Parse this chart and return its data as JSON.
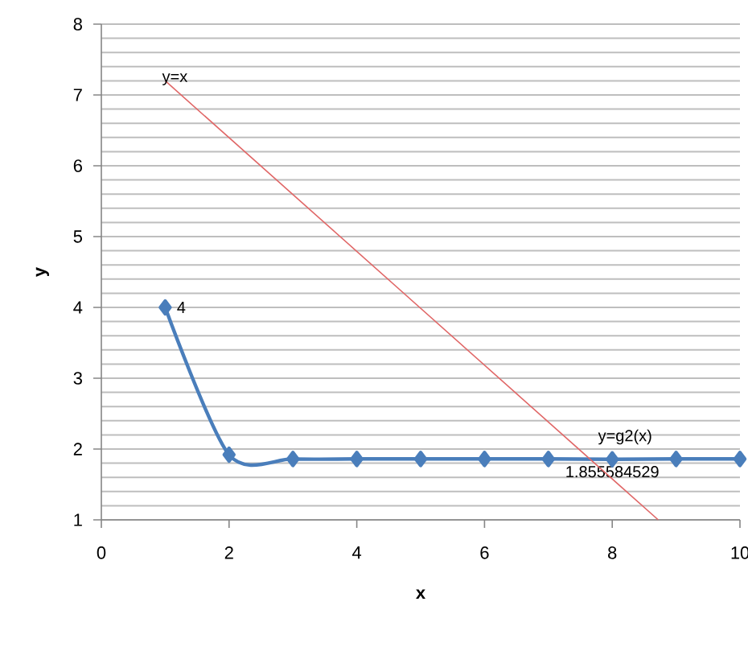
{
  "chart_data": {
    "type": "line",
    "xlabel": "x",
    "ylabel": "y",
    "xlim": [
      0,
      10
    ],
    "ylim": [
      1,
      8
    ],
    "xticks": [
      0,
      2,
      4,
      6,
      8,
      10
    ],
    "yticks": [
      1,
      {
        "value": 1.2,
        "label": null
      },
      {
        "value": 1.4,
        "label": null
      },
      {
        "value": 1.6,
        "label": null
      },
      {
        "value": 1.8,
        "label": null
      },
      2,
      {
        "value": 2.2,
        "label": null
      },
      {
        "value": 2.4,
        "label": null
      },
      {
        "value": 2.6,
        "label": null
      },
      {
        "value": 2.8,
        "label": null
      },
      3,
      {
        "value": 3.2,
        "label": null
      },
      {
        "value": 3.4,
        "label": null
      },
      {
        "value": 3.6,
        "label": null
      },
      {
        "value": 3.8,
        "label": null
      },
      4,
      {
        "value": 4.2,
        "label": null
      },
      {
        "value": 4.4,
        "label": null
      },
      {
        "value": 4.6,
        "label": null
      },
      {
        "value": 4.8,
        "label": null
      },
      5,
      {
        "value": 5.2,
        "label": null
      },
      {
        "value": 5.4,
        "label": null
      },
      {
        "value": 5.6,
        "label": null
      },
      {
        "value": 5.8,
        "label": null
      },
      6,
      {
        "value": 6.2,
        "label": null
      },
      {
        "value": 6.4,
        "label": null
      },
      {
        "value": 6.6,
        "label": null
      },
      {
        "value": 6.8,
        "label": null
      },
      7,
      {
        "value": 7.2,
        "label": null
      },
      {
        "value": 7.4,
        "label": null
      },
      {
        "value": 7.6,
        "label": null
      },
      {
        "value": 7.8,
        "label": null
      },
      8
    ],
    "grid": "y",
    "series": [
      {
        "name": "y=g2(x)",
        "color": "#4a7ebb",
        "marker": "diamond",
        "x": [
          1,
          2,
          3,
          4,
          5,
          6,
          7,
          8,
          9,
          10
        ],
        "values": [
          4,
          1.92,
          1.86,
          1.86,
          1.86,
          1.86,
          1.86,
          1.855584529,
          1.86,
          1.86
        ],
        "value_labels": [
          "4",
          null,
          null,
          null,
          null,
          null,
          null,
          "1.855584529",
          null,
          null
        ]
      },
      {
        "name": "y=x",
        "color": "#e06666",
        "marker": "none",
        "x": [
          1,
          8.72
        ],
        "values": [
          7.2,
          1
        ]
      }
    ]
  }
}
